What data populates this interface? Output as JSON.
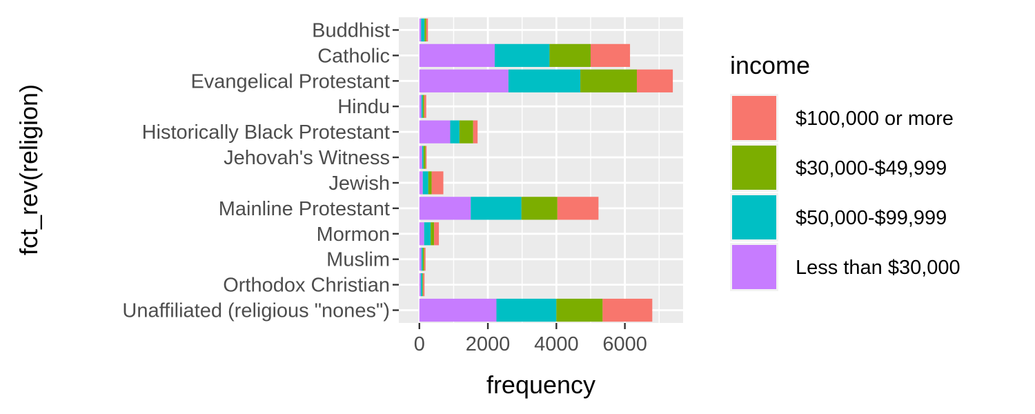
{
  "chart_data": {
    "type": "bar",
    "orientation": "horizontal",
    "stacked": true,
    "categories": [
      "Buddhist",
      "Catholic",
      "Evangelical Protestant",
      "Hindu",
      "Historically Black Protestant",
      "Jehovah's Witness",
      "Jewish",
      "Mainline Protestant",
      "Mormon",
      "Muslim",
      "Orthodox Christian",
      "Unaffiliated (religious \"nones\")"
    ],
    "series": [
      {
        "name": "Less than $30,000",
        "color": "#C77CFF",
        "values": [
          50,
          2200,
          2600,
          60,
          900,
          80,
          100,
          1500,
          140,
          60,
          40,
          2250
        ]
      },
      {
        "name": "$50,000-$99,999",
        "color": "#00BFC4",
        "values": [
          100,
          1600,
          2100,
          40,
          270,
          40,
          160,
          1480,
          190,
          40,
          50,
          1750
        ]
      },
      {
        "name": "$30,000-$49,999",
        "color": "#7CAE00",
        "values": [
          50,
          1200,
          1650,
          40,
          400,
          60,
          100,
          1050,
          100,
          40,
          20,
          1350
        ]
      },
      {
        "name": "$100,000 or more",
        "color": "#F8766D",
        "values": [
          50,
          1150,
          1050,
          60,
          130,
          30,
          340,
          1200,
          140,
          40,
          40,
          1450
        ]
      }
    ],
    "xlabel": "frequency",
    "ylabel": "fct_rev(religion)",
    "xlim": [
      -600,
      7700
    ],
    "xticks": [
      0,
      2000,
      4000,
      6000
    ],
    "xtick_labels": [
      "0",
      "2000",
      "4000",
      "6000"
    ],
    "grid": true,
    "legend": {
      "title": "income",
      "position": "right",
      "entries": [
        "$100,000 or more",
        "$30,000-$49,999",
        "$50,000-$99,999",
        "Less than $30,000"
      ]
    }
  }
}
